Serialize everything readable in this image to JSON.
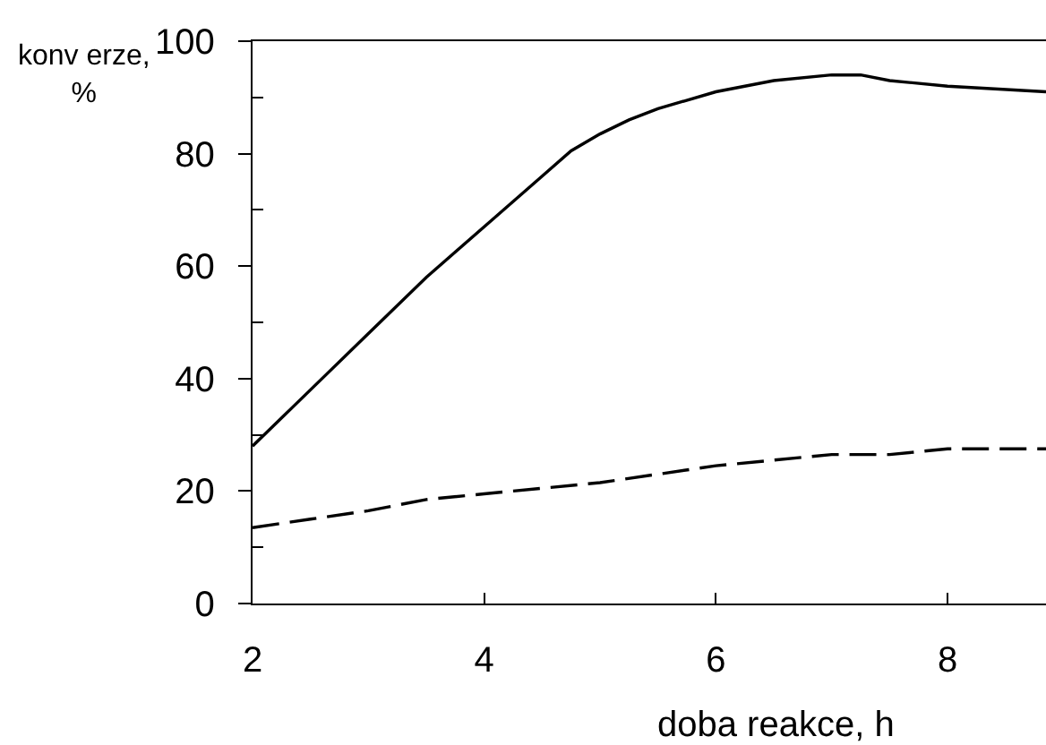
{
  "chart_data": {
    "type": "line",
    "xlabel": "doba reakce, h",
    "ylabel": "konv erze,\n%",
    "xlim": [
      2,
      8.85
    ],
    "xticks": [
      2,
      4,
      6,
      8
    ],
    "ylim": [
      0,
      100
    ],
    "yticks": [
      0,
      {
        "value": 10,
        "label": null
      },
      20,
      {
        "value": 30,
        "label": null
      },
      40,
      {
        "value": 50,
        "label": null
      },
      60,
      {
        "value": 70,
        "label": null
      },
      80,
      {
        "value": 90,
        "label": null
      },
      100
    ],
    "grid": false,
    "series": [
      {
        "color": "#000000",
        "line_style": "solid",
        "x": [
          2,
          2.5,
          3,
          3.5,
          4,
          4.5,
          4.75,
          5,
          5.25,
          5.5,
          6,
          6.5,
          7,
          7.25,
          7.5,
          8,
          8.85
        ],
        "values": [
          28,
          38,
          48,
          58,
          67,
          76,
          80.5,
          83.5,
          86,
          88,
          91,
          93,
          94,
          94,
          93,
          92,
          91
        ]
      },
      {
        "color": "#000000",
        "line_style": "dashed",
        "x": [
          2,
          2.5,
          3,
          3.5,
          4,
          4.5,
          5,
          5.5,
          6,
          6.5,
          7,
          7.5,
          8,
          8.85
        ],
        "values": [
          13.5,
          15,
          16.5,
          18.5,
          19.5,
          20.5,
          21.5,
          23,
          24.5,
          25.5,
          26.5,
          26.5,
          27.5,
          27.5
        ]
      }
    ]
  }
}
